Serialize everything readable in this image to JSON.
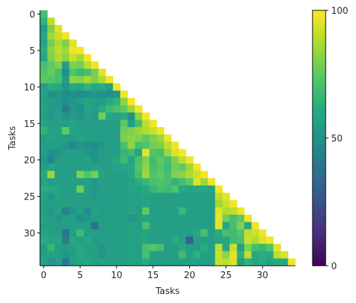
{
  "chart_data": {
    "type": "heatmap",
    "title": "",
    "xlabel": "Tasks",
    "ylabel": "Tasks",
    "n": 35,
    "mask": "upper-triangle-above-diagonal-empty",
    "x_ticks": [
      0,
      5,
      10,
      15,
      20,
      25,
      30
    ],
    "y_ticks": [
      0,
      5,
      10,
      15,
      20,
      25,
      30
    ],
    "colorbar": {
      "min": 0,
      "max": 100,
      "ticks": [
        0,
        50,
        100
      ],
      "colormap": "viridis"
    },
    "values": [
      [
        70
      ],
      [
        65,
        90
      ],
      [
        55,
        80,
        95
      ],
      [
        60,
        85,
        92,
        98
      ],
      [
        58,
        78,
        88,
        80,
        96
      ],
      [
        62,
        82,
        90,
        85,
        98,
        99
      ],
      [
        60,
        80,
        88,
        82,
        92,
        86,
        99
      ],
      [
        70,
        75,
        80,
        55,
        80,
        78,
        90,
        98
      ],
      [
        72,
        76,
        70,
        50,
        72,
        66,
        70,
        78,
        96
      ],
      [
        74,
        72,
        70,
        55,
        82,
        80,
        86,
        80,
        88,
        98
      ],
      [
        55,
        62,
        60,
        52,
        60,
        58,
        65,
        60,
        62,
        55,
        98
      ],
      [
        58,
        50,
        52,
        48,
        50,
        48,
        50,
        52,
        50,
        48,
        52,
        98
      ],
      [
        55,
        56,
        52,
        50,
        52,
        55,
        58,
        56,
        55,
        60,
        65,
        82,
        99
      ],
      [
        58,
        52,
        56,
        42,
        52,
        50,
        58,
        56,
        62,
        68,
        70,
        75,
        85,
        98
      ],
      [
        56,
        52,
        56,
        52,
        55,
        52,
        56,
        54,
        78,
        60,
        58,
        60,
        50,
        82,
        99
      ],
      [
        58,
        56,
        56,
        55,
        58,
        56,
        56,
        56,
        55,
        56,
        56,
        75,
        55,
        70,
        90,
        98
      ],
      [
        65,
        56,
        58,
        75,
        58,
        56,
        56,
        56,
        55,
        56,
        55,
        78,
        80,
        85,
        88,
        92,
        98
      ],
      [
        56,
        58,
        56,
        56,
        55,
        58,
        56,
        56,
        55,
        56,
        56,
        80,
        82,
        80,
        75,
        80,
        85,
        98
      ],
      [
        56,
        55,
        56,
        52,
        46,
        52,
        50,
        48,
        52,
        56,
        56,
        70,
        82,
        70,
        72,
        78,
        80,
        90,
        98
      ],
      [
        55,
        50,
        52,
        55,
        56,
        56,
        52,
        50,
        56,
        55,
        56,
        65,
        68,
        58,
        96,
        72,
        70,
        85,
        95,
        99
      ],
      [
        52,
        45,
        55,
        56,
        56,
        55,
        58,
        52,
        56,
        55,
        60,
        68,
        58,
        70,
        80,
        68,
        75,
        70,
        80,
        90,
        98
      ],
      [
        56,
        58,
        55,
        56,
        55,
        56,
        56,
        58,
        56,
        55,
        58,
        58,
        60,
        72,
        82,
        70,
        72,
        68,
        78,
        75,
        85,
        98
      ],
      [
        60,
        85,
        55,
        55,
        56,
        80,
        72,
        78,
        58,
        56,
        56,
        56,
        60,
        70,
        85,
        72,
        75,
        70,
        80,
        82,
        88,
        92,
        99
      ],
      [
        58,
        55,
        55,
        55,
        56,
        55,
        56,
        52,
        56,
        55,
        56,
        56,
        58,
        62,
        66,
        70,
        72,
        70,
        65,
        70,
        75,
        95,
        85,
        98
      ],
      [
        62,
        60,
        58,
        56,
        56,
        78,
        56,
        54,
        55,
        56,
        56,
        56,
        58,
        58,
        60,
        66,
        70,
        68,
        72,
        60,
        58,
        60,
        60,
        58,
        98
      ],
      [
        58,
        52,
        58,
        56,
        56,
        56,
        55,
        54,
        55,
        56,
        56,
        56,
        58,
        56,
        58,
        56,
        56,
        56,
        56,
        56,
        56,
        56,
        56,
        56,
        90,
        96
      ],
      [
        56,
        55,
        56,
        56,
        56,
        56,
        56,
        56,
        55,
        56,
        56,
        56,
        58,
        56,
        58,
        56,
        56,
        56,
        56,
        56,
        56,
        56,
        56,
        56,
        85,
        92,
        98
      ],
      [
        56,
        52,
        58,
        45,
        52,
        56,
        48,
        58,
        55,
        56,
        56,
        56,
        58,
        56,
        75,
        56,
        56,
        56,
        56,
        66,
        56,
        56,
        56,
        56,
        95,
        88,
        90,
        98
      ],
      [
        58,
        55,
        52,
        56,
        56,
        50,
        52,
        56,
        55,
        56,
        56,
        56,
        52,
        56,
        58,
        56,
        56,
        56,
        56,
        56,
        56,
        56,
        56,
        56,
        96,
        78,
        70,
        75,
        98
      ],
      [
        56,
        55,
        56,
        56,
        56,
        56,
        56,
        38,
        55,
        56,
        56,
        56,
        58,
        56,
        70,
        56,
        56,
        56,
        56,
        56,
        56,
        56,
        56,
        56,
        96,
        60,
        70,
        80,
        60,
        98
      ],
      [
        58,
        56,
        56,
        40,
        56,
        68,
        56,
        56,
        55,
        56,
        56,
        56,
        58,
        56,
        58,
        56,
        56,
        56,
        56,
        56,
        56,
        60,
        70,
        56,
        62,
        70,
        68,
        72,
        90,
        92,
        98
      ],
      [
        62,
        58,
        60,
        42,
        60,
        56,
        60,
        55,
        56,
        56,
        56,
        56,
        58,
        56,
        58,
        56,
        56,
        56,
        62,
        56,
        30,
        56,
        56,
        56,
        58,
        60,
        68,
        70,
        92,
        88,
        95,
        99
      ],
      [
        56,
        66,
        56,
        56,
        56,
        60,
        56,
        56,
        52,
        56,
        56,
        56,
        58,
        56,
        70,
        72,
        70,
        56,
        56,
        60,
        56,
        56,
        62,
        56,
        90,
        60,
        92,
        56,
        80,
        70,
        66,
        72,
        96
      ],
      [
        56,
        58,
        56,
        52,
        56,
        60,
        58,
        56,
        52,
        56,
        56,
        56,
        58,
        56,
        70,
        56,
        56,
        56,
        56,
        68,
        56,
        64,
        56,
        56,
        92,
        82,
        96,
        64,
        90,
        60,
        62,
        60,
        90,
        95
      ],
      [
        58,
        52,
        56,
        40,
        56,
        58,
        60,
        56,
        58,
        56,
        56,
        56,
        58,
        56,
        62,
        56,
        56,
        56,
        56,
        56,
        56,
        56,
        56,
        56,
        92,
        90,
        94,
        56,
        64,
        58,
        62,
        58,
        60,
        60,
        98
      ]
    ]
  }
}
